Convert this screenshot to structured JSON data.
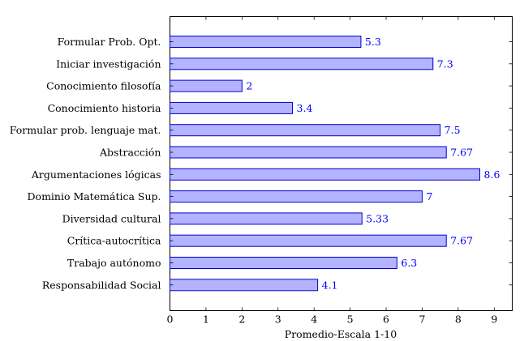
{
  "chart_data": {
    "type": "bar",
    "orientation": "horizontal",
    "categories": [
      "Formular Prob. Opt.",
      "Iniciar investigación",
      "Conocimiento filosofía",
      "Conocimiento historia",
      "Formular prob. lenguaje mat.",
      "Abstracción",
      "Argumentaciones lógicas",
      "Dominio Matemática Sup.",
      "Diversidad cultural",
      "Crítica-autocrítica",
      "Trabajo autónomo",
      "Responsabilidad Social"
    ],
    "values": [
      5.3,
      7.3,
      2,
      3.4,
      7.5,
      7.67,
      8.6,
      7,
      5.33,
      7.67,
      6.3,
      4.1
    ],
    "value_labels": [
      "5.3",
      "7.3",
      "2",
      "3.4",
      "7.5",
      "7.67",
      "8.6",
      "7",
      "5.33",
      "7.67",
      "6.3",
      "4.1"
    ],
    "xlabel": "Promedio-Escala 1-10",
    "xlim": [
      0,
      9.5
    ],
    "xticks": [
      "0",
      "1",
      "2",
      "3",
      "4",
      "5",
      "6",
      "7",
      "8",
      "9"
    ],
    "grid": false,
    "colors": {
      "bar_fill": "#b3b3ff",
      "bar_stroke": "#0000cc",
      "value_label": "#0000ff",
      "axis": "#000000"
    }
  }
}
